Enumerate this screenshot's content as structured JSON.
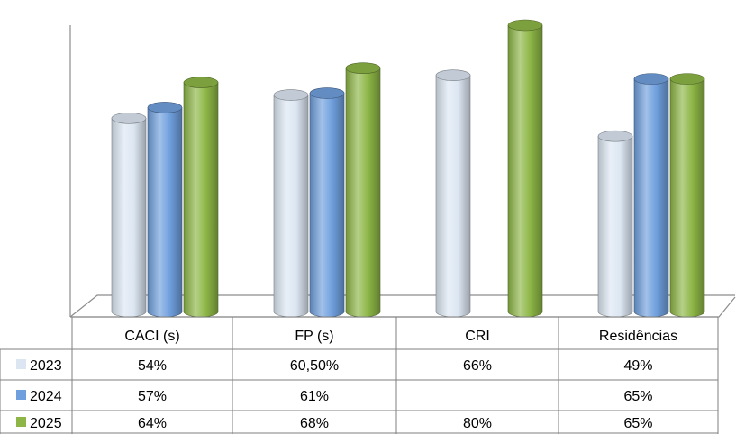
{
  "chart_data": {
    "type": "bar",
    "style": "3d-cylinder",
    "categories": [
      "CACI (s)",
      "FP (s)",
      "CRI",
      "Residências"
    ],
    "series": [
      {
        "name": "2023",
        "color": "#dce6f2",
        "values": [
          54,
          60.5,
          66,
          49
        ],
        "labels": [
          "54%",
          "60,50%",
          "66%",
          "49%"
        ]
      },
      {
        "name": "2024",
        "color": "#6f9fdd",
        "values": [
          57,
          61,
          null,
          65
        ],
        "labels": [
          "57%",
          "61%",
          "",
          "65%"
        ]
      },
      {
        "name": "2025",
        "color": "#8db646",
        "values": [
          64,
          68,
          80,
          65
        ],
        "labels": [
          "64%",
          "68%",
          "80%",
          "65%"
        ]
      }
    ],
    "ylim": [
      0,
      80
    ],
    "grid": false,
    "legend": "data-table-left"
  }
}
